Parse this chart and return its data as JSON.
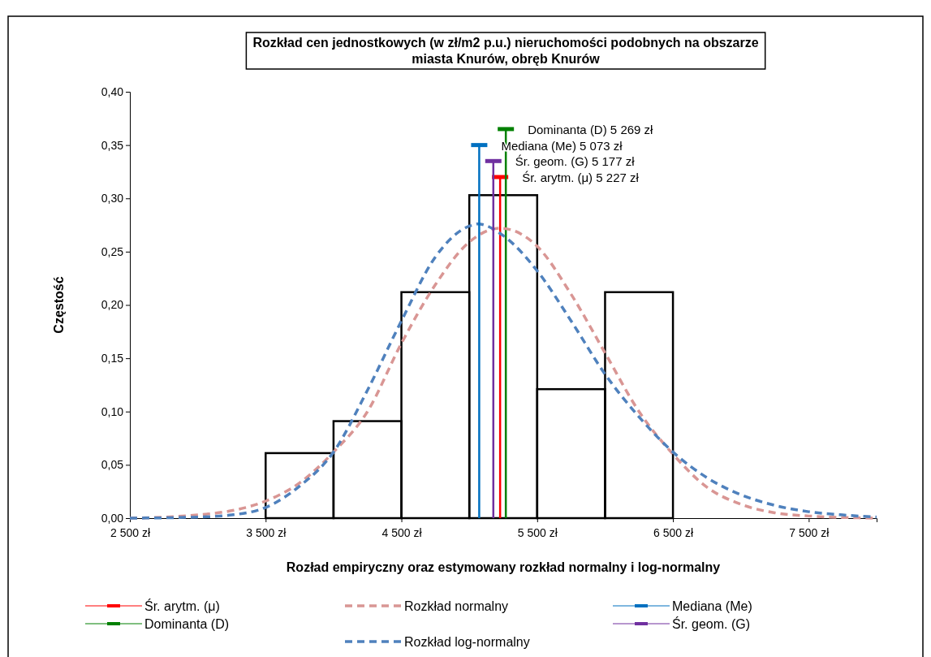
{
  "chart_data": {
    "type": "histogram",
    "title": "Rozkład cen jednostkowych (w zł/m2 p.u.) nieruchomości podobnych na obszarze\nmiasta Knurów, obręb Knurów",
    "xlabel": "Rozład empiryczny oraz estymowany rozkład normalny i log-normalny",
    "ylabel": "Częstość",
    "bins": [
      3500,
      4000,
      4500,
      5000,
      5500,
      6000,
      6500
    ],
    "values": [
      0.061,
      0.091,
      0.212,
      0.303,
      0.121,
      0.212
    ],
    "color": "#000000",
    "xlim": [
      2500,
      8000
    ],
    "xticks": [
      {
        "value": 2500,
        "label": "2 500 zł"
      },
      {
        "value": 3500,
        "label": "3 500 zł"
      },
      {
        "value": 4500,
        "label": "4 500 zł"
      },
      {
        "value": 5500,
        "label": "5 500 zł"
      },
      {
        "value": 6500,
        "label": "6 500 zł"
      },
      {
        "value": 7500,
        "label": "7 500 zł"
      }
    ],
    "ylim": [
      0,
      0.4
    ],
    "yticks": [
      {
        "value": 0,
        "label": "0,00"
      },
      {
        "value": 0.05,
        "label": "0,05"
      },
      {
        "value": 0.1,
        "label": "0,10"
      },
      {
        "value": 0.15,
        "label": "0,15"
      },
      {
        "value": 0.2,
        "label": "0,20"
      },
      {
        "value": 0.25,
        "label": "0,25"
      },
      {
        "value": 0.3,
        "label": "0,30"
      },
      {
        "value": 0.35,
        "label": "0,35"
      },
      {
        "value": 0.4,
        "label": "0,40"
      }
    ],
    "grid": false,
    "legend": "bottom",
    "series": [
      {
        "name": "Śr. arytm. (μ)",
        "type": "line",
        "color": "#ff0000",
        "x": [
          5227,
          5227
        ],
        "values": [
          0,
          0.32
        ]
      },
      {
        "name": "Dominanta (D)",
        "type": "line",
        "color": "#008000",
        "x": [
          5269,
          5269
        ],
        "values": [
          0,
          0.365
        ]
      },
      {
        "name": "Rozkład normalny",
        "type": "line",
        "line_style": "dashed",
        "color": "#d99694",
        "x": [
          2500,
          3000,
          3250,
          3500,
          3750,
          4000,
          4250,
          4500,
          4750,
          5000,
          5227,
          5500,
          5750,
          6000,
          6250,
          6500,
          6750,
          7000,
          7250,
          7500,
          8000
        ],
        "values": [
          0,
          0.003,
          0.007,
          0.016,
          0.033,
          0.062,
          0.1,
          0.164,
          0.219,
          0.259,
          0.272,
          0.255,
          0.21,
          0.155,
          0.1,
          0.06,
          0.029,
          0.013,
          0.005,
          0.002,
          0
        ]
      },
      {
        "name": "Rozkład log-normalny",
        "type": "line",
        "line_style": "dashed",
        "color": "#4f81bd",
        "x": [
          2500,
          3000,
          3250,
          3500,
          3750,
          4000,
          4250,
          4500,
          4750,
          5000,
          5063,
          5250,
          5500,
          5750,
          6000,
          6250,
          6500,
          6750,
          7000,
          7250,
          7500,
          7750,
          8000
        ],
        "values": [
          0,
          0.001,
          0.003,
          0.01,
          0.03,
          0.062,
          0.12,
          0.185,
          0.245,
          0.274,
          0.276,
          0.265,
          0.232,
          0.185,
          0.135,
          0.095,
          0.062,
          0.038,
          0.022,
          0.012,
          0.006,
          0.003,
          0.001
        ]
      },
      {
        "name": "Mediana (Me)",
        "type": "line",
        "color": "#0070c0",
        "x": [
          5073,
          5073
        ],
        "values": [
          0,
          0.35
        ]
      },
      {
        "name": "Śr. geom. (G)",
        "type": "line",
        "color": "#7030a0",
        "x": [
          5177,
          5177
        ],
        "values": [
          0,
          0.335
        ]
      }
    ],
    "annotations": [
      {
        "text": "Dominanta (D) 5 269 zł",
        "x": 5269,
        "y": 0.365
      },
      {
        "text": "Mediana (Me) 5 073 zł",
        "x": 5073,
        "y": 0.35
      },
      {
        "text": "Śr. geom. (G) 5 177 zł",
        "x": 5177,
        "y": 0.335
      },
      {
        "text": "Śr. arytm. (μ) 5 227 zł",
        "x": 5227,
        "y": 0.32
      }
    ]
  }
}
